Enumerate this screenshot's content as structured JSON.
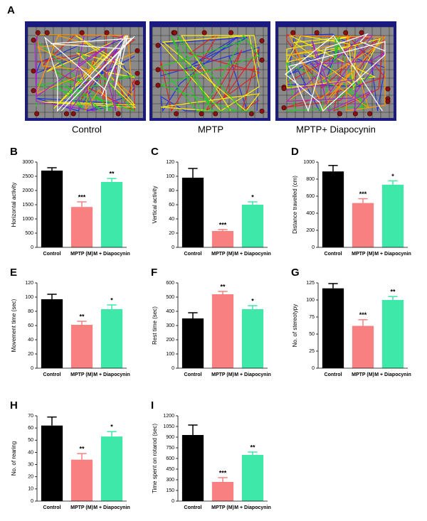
{
  "panel_a": {
    "letter": "A",
    "labels": [
      "Control",
      "MPTP",
      "MPTP+ Diapocynin"
    ]
  },
  "chart_data": [
    {
      "type": "bar",
      "panel": "B",
      "ylabel": "Horizontal activity",
      "categories": [
        "Control",
        "MPTP (M)",
        "M + Diapocynin"
      ],
      "values": [
        2700,
        1420,
        2300
      ],
      "errors": [
        100,
        180,
        120
      ],
      "annotations": [
        null,
        "***",
        "**"
      ],
      "colors": [
        "#000000",
        "#f98080",
        "#3ee8a8"
      ],
      "ylim": [
        0,
        3000
      ],
      "yticks": [
        0,
        500,
        1000,
        1500,
        2000,
        2500,
        3000
      ]
    },
    {
      "type": "bar",
      "panel": "C",
      "ylabel": "Vertical activity",
      "categories": [
        "Control",
        "MPTP (M)",
        "M + Diapocynin"
      ],
      "values": [
        98,
        23,
        60
      ],
      "errors": [
        13,
        2,
        4
      ],
      "annotations": [
        null,
        "***",
        "*"
      ],
      "colors": [
        "#000000",
        "#f98080",
        "#3ee8a8"
      ],
      "ylim": [
        0,
        120
      ],
      "yticks": [
        0,
        20,
        40,
        60,
        80,
        100,
        120
      ]
    },
    {
      "type": "bar",
      "panel": "D",
      "ylabel": "Distance travelled (cm)",
      "categories": [
        "Control",
        "MPTP (M)",
        "M + Diapocynin"
      ],
      "values": [
        890,
        520,
        735
      ],
      "errors": [
        70,
        50,
        45
      ],
      "annotations": [
        null,
        "***",
        "*"
      ],
      "colors": [
        "#000000",
        "#f98080",
        "#3ee8a8"
      ],
      "ylim": [
        0,
        1000
      ],
      "yticks": [
        0,
        200,
        400,
        600,
        800,
        1000
      ]
    },
    {
      "type": "bar",
      "panel": "E",
      "ylabel": "Movement time (sec)",
      "categories": [
        "Control",
        "MPTP (M)",
        "M + Diapocynin"
      ],
      "values": [
        97,
        61,
        83
      ],
      "errors": [
        7,
        5,
        6
      ],
      "annotations": [
        null,
        "**",
        "*"
      ],
      "colors": [
        "#000000",
        "#f98080",
        "#3ee8a8"
      ],
      "ylim": [
        0,
        120
      ],
      "yticks": [
        0,
        20,
        40,
        60,
        80,
        100,
        120
      ]
    },
    {
      "type": "bar",
      "panel": "F",
      "ylabel": "Rest time (sec)",
      "categories": [
        "Control",
        "MPTP (M)",
        "M + Diapocynin"
      ],
      "values": [
        350,
        520,
        415
      ],
      "errors": [
        40,
        20,
        25
      ],
      "annotations": [
        null,
        "**",
        "*"
      ],
      "colors": [
        "#000000",
        "#f98080",
        "#3ee8a8"
      ],
      "ylim": [
        0,
        600
      ],
      "yticks": [
        0,
        100,
        200,
        300,
        400,
        500,
        600
      ]
    },
    {
      "type": "bar",
      "panel": "G",
      "ylabel": "No. of stereotypy",
      "categories": [
        "Control",
        "MPTP (M)",
        "M + Diapocynin"
      ],
      "values": [
        117,
        62,
        100
      ],
      "errors": [
        7,
        9,
        5
      ],
      "annotations": [
        null,
        "***",
        "**"
      ],
      "colors": [
        "#000000",
        "#f98080",
        "#3ee8a8"
      ],
      "ylim": [
        0,
        125
      ],
      "yticks": [
        0,
        25,
        50,
        75,
        100,
        125
      ]
    },
    {
      "type": "bar",
      "panel": "H",
      "ylabel": "No. of rearing",
      "categories": [
        "Control",
        "MPTP (M)",
        "M + Diapocynin"
      ],
      "values": [
        62,
        34,
        53
      ],
      "errors": [
        7,
        5,
        4
      ],
      "annotations": [
        null,
        "**",
        "*"
      ],
      "colors": [
        "#000000",
        "#f98080",
        "#3ee8a8"
      ],
      "ylim": [
        0,
        70
      ],
      "yticks": [
        0,
        10,
        20,
        30,
        40,
        50,
        60,
        70
      ]
    },
    {
      "type": "bar",
      "panel": "I",
      "ylabel": "Time spent on rotarod (sec)",
      "categories": [
        "Control",
        "MPTP (M)",
        "M + Diapocynin"
      ],
      "values": [
        930,
        270,
        650
      ],
      "errors": [
        140,
        60,
        40
      ],
      "annotations": [
        null,
        "***",
        "**"
      ],
      "colors": [
        "#000000",
        "#f98080",
        "#3ee8a8"
      ],
      "ylim": [
        0,
        1200
      ],
      "yticks": [
        0,
        150,
        300,
        450,
        600,
        750,
        900,
        1050,
        1200
      ]
    }
  ]
}
